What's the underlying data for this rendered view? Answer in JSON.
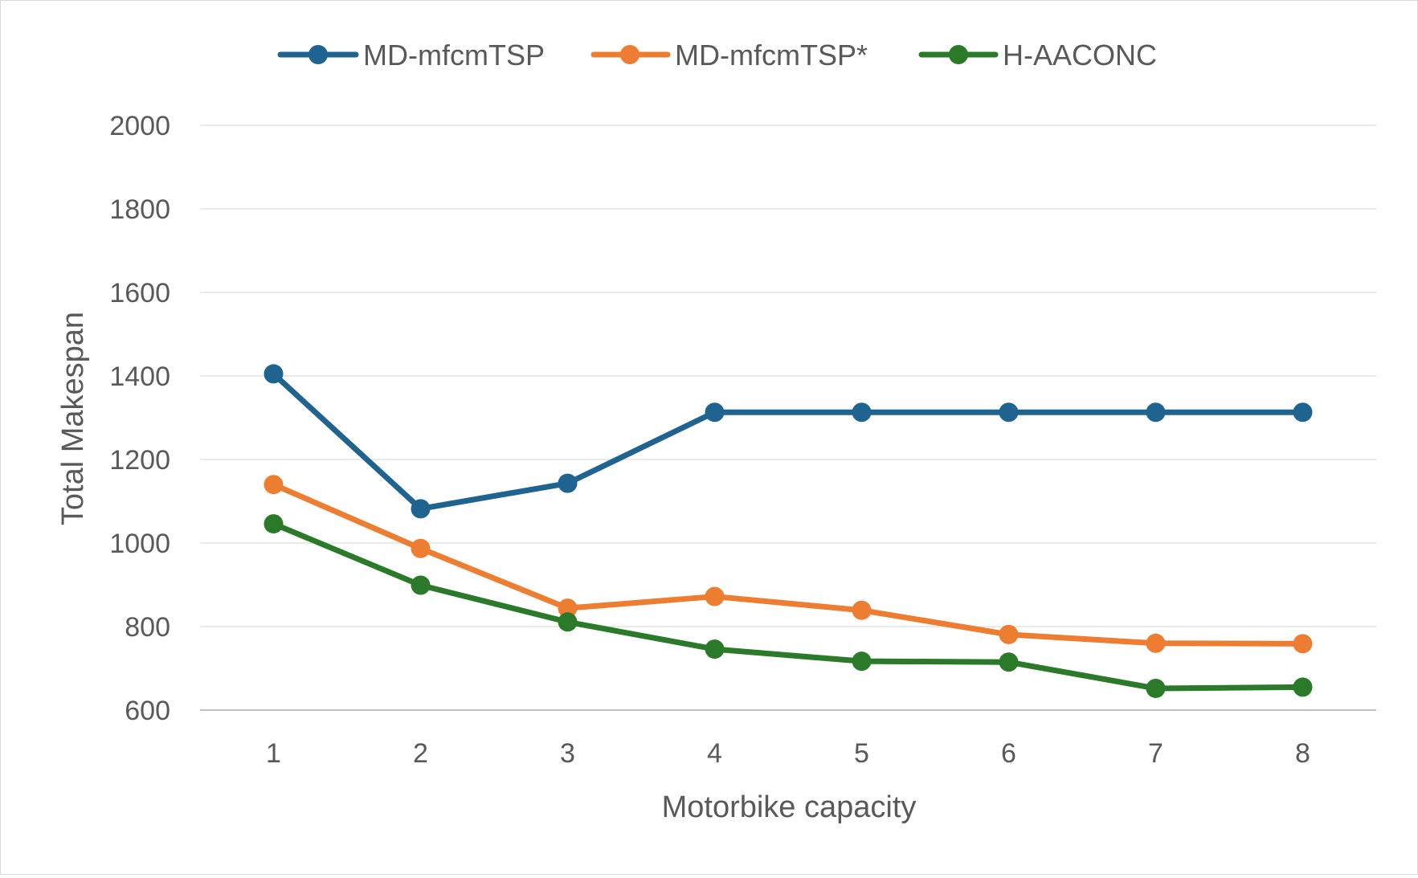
{
  "chart_data": {
    "type": "line",
    "title": "",
    "xlabel": "Motorbike capacity",
    "ylabel": "Total Makespan",
    "x": [
      1,
      2,
      3,
      4,
      5,
      6,
      7,
      8
    ],
    "ylim": [
      600,
      2000
    ],
    "yticks": [
      600,
      800,
      1000,
      1200,
      1400,
      1600,
      1800,
      2000
    ],
    "grid": "horizontal",
    "legend": "top-center",
    "series": [
      {
        "name": "MD-mfcmTSP",
        "color": "#1f6391",
        "values": [
          1405,
          1082,
          1143,
          1313,
          1313,
          1313,
          1313,
          1313
        ]
      },
      {
        "name": "MD-mfcmTSP*",
        "color": "#ed7d31",
        "values": [
          1140,
          987,
          844,
          872,
          839,
          781,
          760,
          759
        ]
      },
      {
        "name": "H-AACONC",
        "color": "#2a7a2a",
        "values": [
          1046,
          899,
          811,
          746,
          717,
          715,
          652,
          655
        ]
      }
    ]
  }
}
